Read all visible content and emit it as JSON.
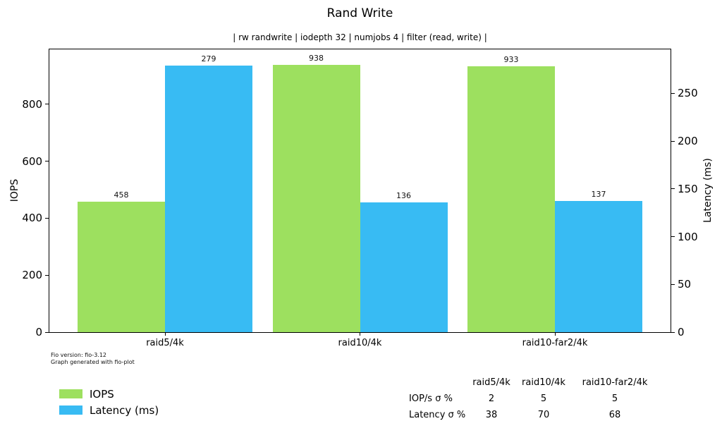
{
  "chart_data": {
    "type": "bar",
    "title": "Rand Write",
    "subtitle": "| rw randwrite | iodepth 32 | numjobs 4 | filter (read, write) |",
    "categories": [
      "raid5/4k",
      "raid10/4k",
      "raid10-far2/4k"
    ],
    "series": [
      {
        "name": "IOPS",
        "axis": "left",
        "color": "#9de05f",
        "values": [
          458,
          938,
          933
        ]
      },
      {
        "name": "Latency (ms)",
        "axis": "right",
        "color": "#38bbf3",
        "values": [
          279,
          136,
          137
        ]
      }
    ],
    "left_axis": {
      "label": "IOPS",
      "ticks": [
        0,
        200,
        400,
        600,
        800
      ],
      "max": 993
    },
    "right_axis": {
      "label": "Latency (ms)",
      "ticks": [
        0,
        50,
        100,
        150,
        200,
        250
      ],
      "max": 296
    },
    "grid": false,
    "legend_position": "bottom-left",
    "legend": [
      {
        "label": "IOPS",
        "color": "#9de05f"
      },
      {
        "label": "Latency (ms)",
        "color": "#38bbf3"
      }
    ],
    "footer": [
      "Fio version: fio-3.12",
      "Graph generated with fio-plot"
    ],
    "stats_table": {
      "columns": [
        "raid5/4k",
        "raid10/4k",
        "raid10-far2/4k"
      ],
      "rows": [
        {
          "label": "IOP/s σ %",
          "values": [
            "2",
            "5",
            "5"
          ]
        },
        {
          "label": "Latency σ %",
          "values": [
            "38",
            "70",
            "68"
          ]
        }
      ]
    }
  }
}
